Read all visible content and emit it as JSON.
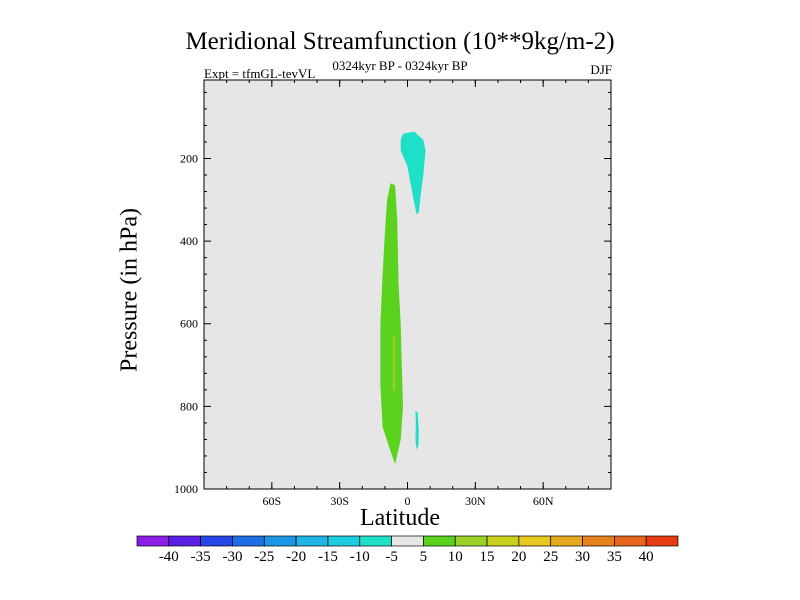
{
  "header": {
    "title": "Meridional Streamfunction (10**9kg/m-2)",
    "experiment": "Expt = tfmGL-tevVL",
    "period": "0324kyr BP - 0324kyr BP",
    "season": "DJF"
  },
  "chart_data": {
    "type": "contour",
    "title": "Meridional Streamfunction (10**9kg/m-2)",
    "xlabel": "Latitude",
    "ylabel": "Pressure (in hPa)",
    "xlim": [
      -90,
      90
    ],
    "ylim": [
      1000,
      10
    ],
    "x_ticks": [
      {
        "value": -60,
        "label": "60S"
      },
      {
        "value": -30,
        "label": "30S"
      },
      {
        "value": 0,
        "label": "0"
      },
      {
        "value": 30,
        "label": "30N"
      },
      {
        "value": 60,
        "label": "60N"
      }
    ],
    "y_ticks": [
      {
        "value": 200,
        "label": "200"
      },
      {
        "value": 400,
        "label": "400"
      },
      {
        "value": 600,
        "label": "600"
      },
      {
        "value": 800,
        "label": "800"
      },
      {
        "value": 1000,
        "label": "1000"
      }
    ],
    "background_color": "#e6e6e6",
    "regions": [
      {
        "level": "-10 to -5",
        "color": "#1ee0c8",
        "points": [
          [
            -2,
            140
          ],
          [
            3,
            135
          ],
          [
            7,
            155
          ],
          [
            8,
            180
          ],
          [
            7,
            240
          ],
          [
            6,
            280
          ],
          [
            5,
            330
          ],
          [
            4,
            335
          ],
          [
            2,
            280
          ],
          [
            0,
            220
          ],
          [
            -3,
            180
          ],
          [
            -3,
            155
          ]
        ]
      },
      {
        "level": "-10 to -5",
        "color": "#1ee0c8",
        "points": [
          [
            3.5,
            810
          ],
          [
            4.5,
            815
          ],
          [
            5,
            860
          ],
          [
            4.8,
            895
          ],
          [
            4,
            905
          ],
          [
            3.5,
            880
          ],
          [
            3.7,
            840
          ]
        ]
      },
      {
        "level": "5 to 10",
        "color": "#5ad21e",
        "points": [
          [
            -7.5,
            260
          ],
          [
            -5.5,
            265
          ],
          [
            -4.5,
            350
          ],
          [
            -4,
            500
          ],
          [
            -3,
            600
          ],
          [
            -2.5,
            700
          ],
          [
            -2,
            800
          ],
          [
            -3,
            880
          ],
          [
            -5.5,
            940
          ],
          [
            -8,
            900
          ],
          [
            -11,
            850
          ],
          [
            -12,
            750
          ],
          [
            -12,
            600
          ],
          [
            -11,
            480
          ],
          [
            -10,
            380
          ],
          [
            -9,
            300
          ]
        ]
      },
      {
        "level": "10 to 15",
        "color": "#9ad228",
        "points": [
          [
            -6.5,
            625
          ],
          [
            -5.5,
            630
          ],
          [
            -5.5,
            760
          ],
          [
            -6.5,
            765
          ]
        ]
      }
    ],
    "colorbar": {
      "labels": [
        "-40",
        "-35",
        "-30",
        "-25",
        "-20",
        "-15",
        "-10",
        "-5",
        "5",
        "10",
        "15",
        "20",
        "25",
        "30",
        "35",
        "40"
      ],
      "colors": [
        "#8c1ee6",
        "#5a1ee6",
        "#2846e6",
        "#1e6ee6",
        "#1e96e6",
        "#1eb4e6",
        "#1ecce0",
        "#1ee0c8",
        "#e6e6e6",
        "#5ad21e",
        "#9ad228",
        "#c8d21e",
        "#e6c81e",
        "#e6a81e",
        "#e6821e",
        "#e6641e",
        "#e63c14"
      ]
    }
  }
}
